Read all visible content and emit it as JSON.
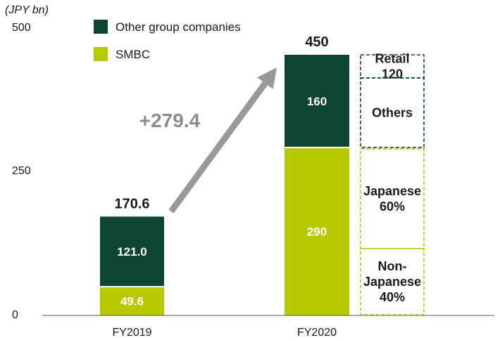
{
  "chart_data": {
    "type": "bar",
    "stacked": true,
    "unit_label": "(JPY bn)",
    "ylim": [
      0,
      500
    ],
    "yticks": [
      0,
      250,
      500
    ],
    "categories": [
      "FY2019",
      "FY2020"
    ],
    "series": [
      {
        "name": "SMBC",
        "color": "#b9c900",
        "values": [
          49.6,
          290
        ],
        "labels": [
          "49.6",
          "290"
        ]
      },
      {
        "name": "Other group companies",
        "color": "#0e4530",
        "values": [
          121.0,
          160
        ],
        "labels": [
          "121.0",
          "160"
        ]
      }
    ],
    "totals": [
      "170.6",
      "450"
    ],
    "delta_label": "+279.4",
    "breakdown": {
      "other_group": [
        {
          "lines": [
            "Retail",
            "120"
          ]
        },
        {
          "lines": [
            "Others"
          ]
        }
      ],
      "smbc": [
        {
          "lines": [
            "Japanese",
            "60%"
          ]
        },
        {
          "lines": [
            "Non-",
            "Japanese",
            "40%"
          ]
        }
      ],
      "other_group_split_value": 120,
      "smbc_split_fraction": 0.6
    },
    "legend_position": "top-left",
    "grid": false
  }
}
